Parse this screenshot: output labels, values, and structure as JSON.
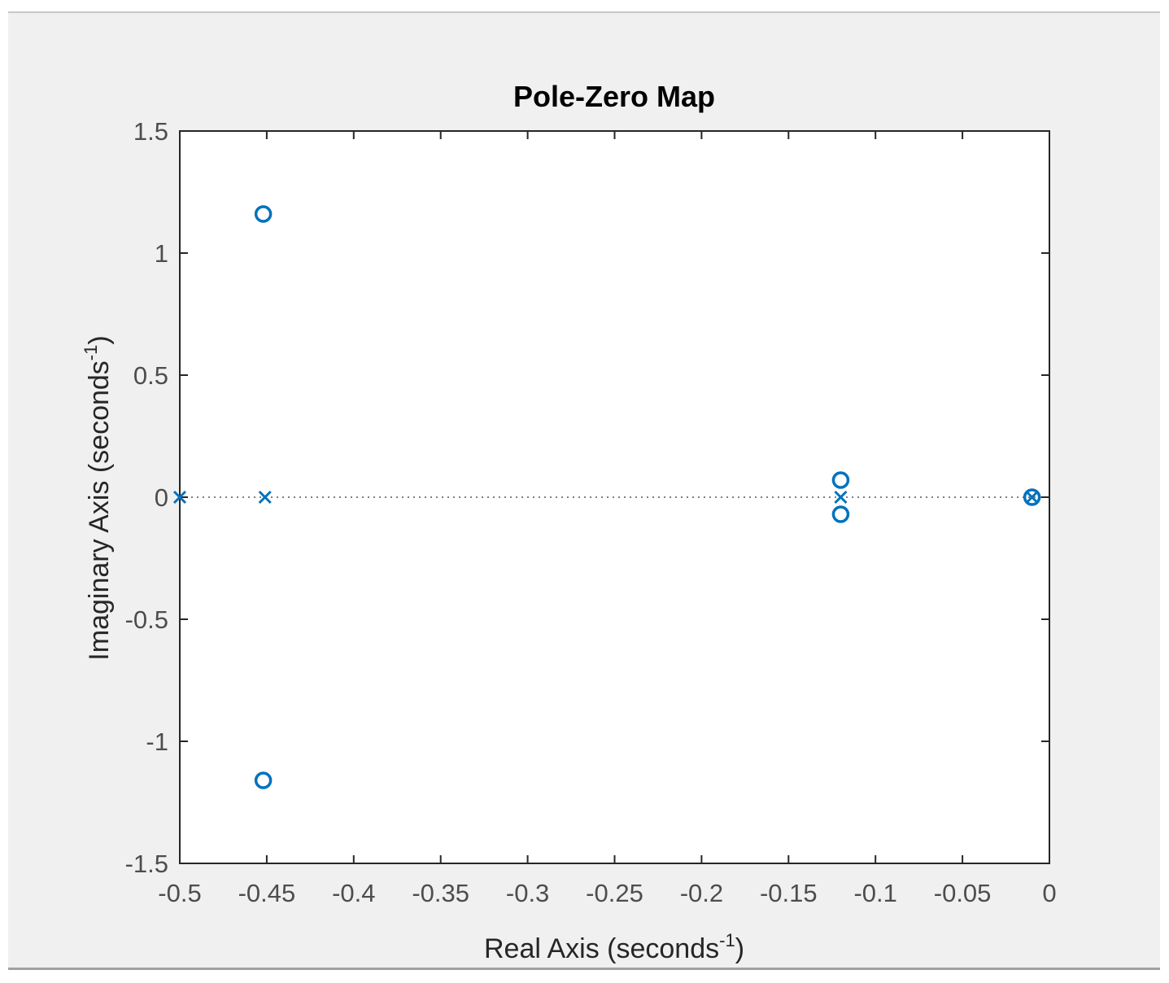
{
  "chart_data": {
    "type": "scatter",
    "title": "Pole-Zero Map",
    "xlabel": {
      "text": "Real Axis (seconds",
      "sup": "-1",
      "close": ")"
    },
    "ylabel": {
      "text": "Imaginary Axis (seconds",
      "sup": "-1",
      "close": ")"
    },
    "xlim": [
      -0.5,
      0
    ],
    "ylim": [
      -1.5,
      1.5
    ],
    "xticks": [
      -0.5,
      -0.45,
      -0.4,
      -0.35,
      -0.3,
      -0.25,
      -0.2,
      -0.15,
      -0.1,
      -0.05,
      0
    ],
    "xtick_labels": [
      "-0.5",
      "-0.45",
      "-0.4",
      "-0.35",
      "-0.3",
      "-0.25",
      "-0.2",
      "-0.15",
      "-0.1",
      "-0.05",
      "0"
    ],
    "yticks": [
      -1.5,
      -1,
      -0.5,
      0,
      0.5,
      1,
      1.5
    ],
    "ytick_labels": [
      "-1.5",
      "-1",
      "-0.5",
      "0",
      "0.5",
      "1",
      "1.5"
    ],
    "grid": false,
    "zero_line": "dotted",
    "marker_color": "#0072bd",
    "series": [
      {
        "marker": "x",
        "points": [
          {
            "x": -0.5,
            "y": 0
          },
          {
            "x": -0.451,
            "y": 0
          },
          {
            "x": -0.12,
            "y": 0
          },
          {
            "x": -0.01,
            "y": 0
          }
        ]
      },
      {
        "marker": "o",
        "points": [
          {
            "x": -0.452,
            "y": 1.16
          },
          {
            "x": -0.452,
            "y": -1.16
          },
          {
            "x": -0.12,
            "y": 0.07
          },
          {
            "x": -0.12,
            "y": -0.07
          },
          {
            "x": -0.01,
            "y": 0
          }
        ]
      }
    ]
  }
}
